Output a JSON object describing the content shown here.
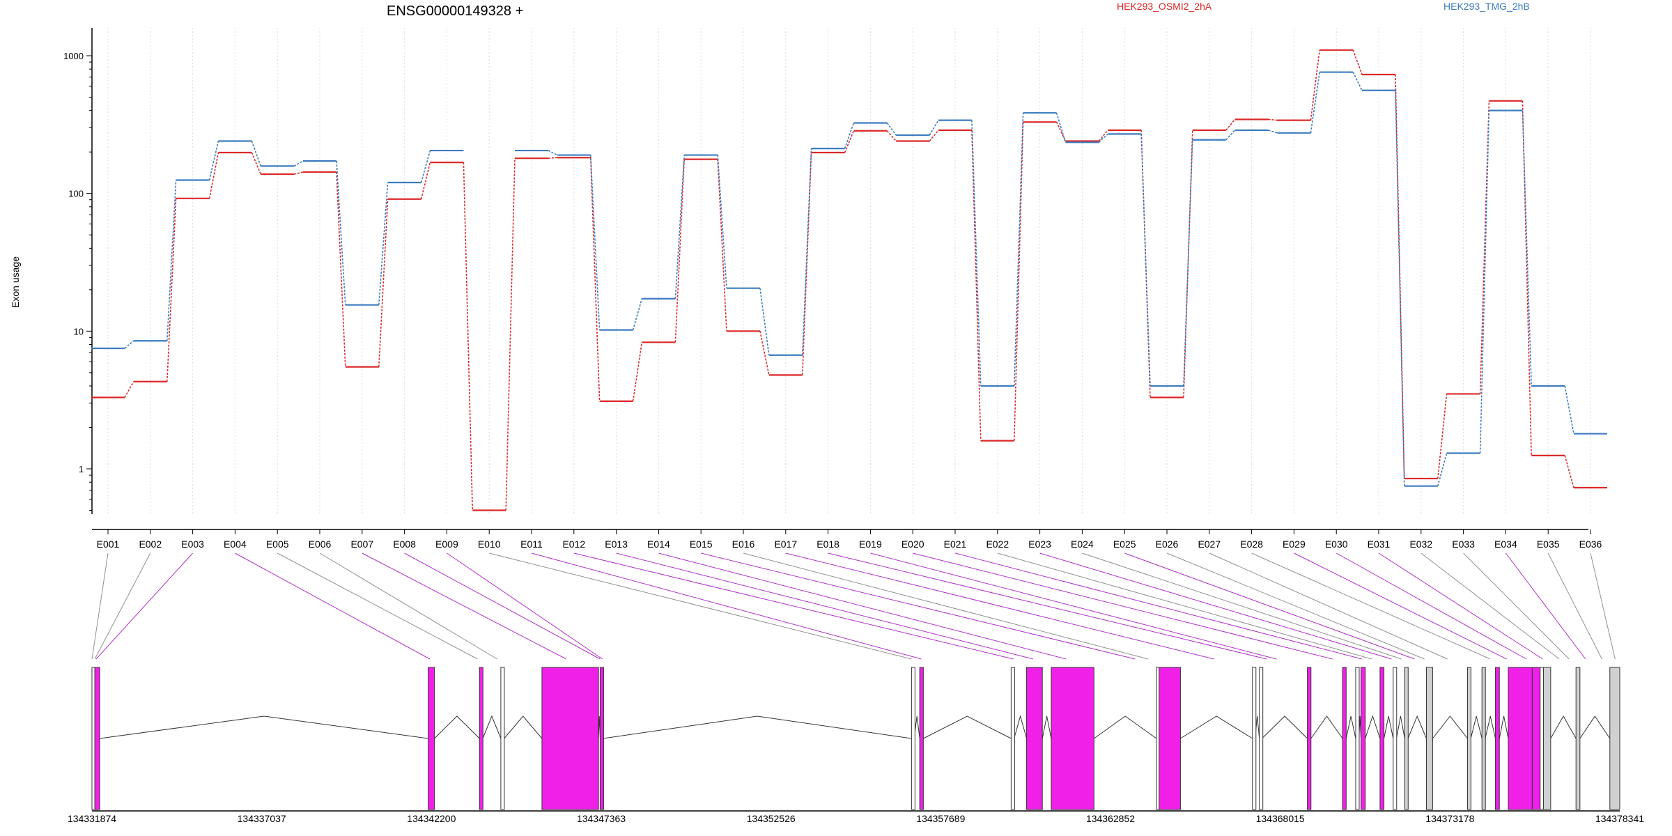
{
  "chart_data": {
    "type": "line",
    "title": "ENSG00000149328 +",
    "ylabel": "Exon usage",
    "xlabel": "",
    "y_scale": "log",
    "ylim": [
      0.4,
      1600
    ],
    "y_ticks": [
      1,
      10,
      100,
      1000
    ],
    "legend_placement": "top-right",
    "grid": "vertical dotted lines at each exon",
    "categories": [
      "E001",
      "E002",
      "E003",
      "E004",
      "E005",
      "E006",
      "E007",
      "E008",
      "E009",
      "E010",
      "E011",
      "E012",
      "E013",
      "E014",
      "E015",
      "E016",
      "E017",
      "E018",
      "E019",
      "E020",
      "E021",
      "E022",
      "E023",
      "E024",
      "E025",
      "E026",
      "E027",
      "E028",
      "E029",
      "E030",
      "E031",
      "E032",
      "E033",
      "E034",
      "E035",
      "E036"
    ],
    "series": [
      {
        "name": "HEK293_OSMI2_2hA",
        "color": "#dc2828",
        "values": [
          3.3,
          4.3,
          92,
          198,
          138,
          143,
          5.5,
          91,
          168,
          0.5,
          180,
          182,
          3.1,
          8.3,
          177,
          10,
          4.8,
          198,
          285,
          240,
          288,
          1.6,
          330,
          240,
          288,
          3.3,
          288,
          345,
          340,
          1100,
          730,
          0.85,
          3.5,
          470,
          1.25,
          0.73
        ]
      },
      {
        "name": "HEK293_TMG_2hB",
        "color": "#3c7cc0",
        "values": [
          7.5,
          8.5,
          125,
          240,
          158,
          172,
          15.5,
          120,
          205,
          null,
          205,
          190,
          10.2,
          17.2,
          190,
          20.5,
          6.7,
          212,
          325,
          265,
          340,
          4.0,
          385,
          235,
          270,
          4.0,
          245,
          288,
          275,
          760,
          560,
          0.75,
          1.3,
          400,
          4.0,
          1.8
        ]
      }
    ],
    "exon_purple": [
      false,
      false,
      true,
      true,
      false,
      false,
      true,
      true,
      true,
      false,
      true,
      true,
      true,
      true,
      true,
      false,
      true,
      true,
      true,
      true,
      true,
      false,
      true,
      false,
      true,
      false,
      false,
      false,
      true,
      true,
      true,
      false,
      false,
      true,
      false,
      false
    ],
    "exon_bases": [
      134331874,
      134331960,
      134332000,
      134342150,
      134343600,
      134344200,
      134346300,
      134347330,
      134347400,
      134356800,
      134357100,
      134359900,
      134360500,
      134361500,
      134363600,
      134364000,
      134366000,
      134367600,
      134367900,
      134369600,
      134370500,
      134370800,
      134371400,
      134371700,
      134372100,
      134372400,
      134373100,
      134374400,
      134374900,
      134375500,
      134376000,
      134376500,
      134376800,
      134377300,
      134377800,
      134378200
    ],
    "gene_track": {
      "start": 134331874,
      "end": 134378341,
      "ticks": [
        134331874,
        134337037,
        134342200,
        134347363,
        134352526,
        134357689,
        134362852,
        134368015,
        134373178,
        134378341
      ],
      "exon_fill": "#f020e8",
      "nonpurple_fill": "#d0d0d0",
      "blocks": [
        {
          "s": 134331874,
          "e": 134331960,
          "c": "w"
        },
        {
          "s": 134331960,
          "e": 134332110,
          "c": "p"
        },
        {
          "s": 134342100,
          "e": 134342290,
          "c": "p"
        },
        {
          "s": 134343660,
          "e": 134343760,
          "c": "p"
        },
        {
          "s": 134344310,
          "e": 134344410,
          "c": "w"
        },
        {
          "s": 134345560,
          "e": 134347280,
          "c": "p"
        },
        {
          "s": 134347330,
          "e": 134347420,
          "c": "p"
        },
        {
          "s": 134356800,
          "e": 134356880,
          "c": "w"
        },
        {
          "s": 134357050,
          "e": 134357160,
          "c": "p"
        },
        {
          "s": 134359830,
          "e": 134359920,
          "c": "w"
        },
        {
          "s": 134360300,
          "e": 134360780,
          "c": "p"
        },
        {
          "s": 134361050,
          "e": 134362350,
          "c": "p"
        },
        {
          "s": 134364250,
          "e": 134364330,
          "c": "w"
        },
        {
          "s": 134364330,
          "e": 134364980,
          "c": "p"
        },
        {
          "s": 134367170,
          "e": 134367250,
          "c": "w"
        },
        {
          "s": 134367380,
          "e": 134367460,
          "c": "w"
        },
        {
          "s": 134368840,
          "e": 134368950,
          "c": "p"
        },
        {
          "s": 134369910,
          "e": 134370020,
          "c": "p"
        },
        {
          "s": 134370310,
          "e": 134370410,
          "c": "w"
        },
        {
          "s": 134370470,
          "e": 134370600,
          "c": "p"
        },
        {
          "s": 134371050,
          "e": 134371170,
          "c": "p"
        },
        {
          "s": 134371450,
          "e": 134371550,
          "c": "w"
        },
        {
          "s": 134371800,
          "e": 134371900,
          "c": "g"
        },
        {
          "s": 134372460,
          "e": 134372650,
          "c": "g"
        },
        {
          "s": 134373710,
          "e": 134373810,
          "c": "g"
        },
        {
          "s": 134374150,
          "e": 134374250,
          "c": "g"
        },
        {
          "s": 134374560,
          "e": 134374680,
          "c": "p"
        },
        {
          "s": 134374950,
          "e": 134375680,
          "c": "p"
        },
        {
          "s": 134375680,
          "e": 134375920,
          "c": "p"
        },
        {
          "s": 134375920,
          "e": 134376020,
          "c": "w"
        },
        {
          "s": 134376020,
          "e": 134376240,
          "c": "g"
        },
        {
          "s": 134377010,
          "e": 134377130,
          "c": "g"
        },
        {
          "s": 134378040,
          "e": 134378341,
          "c": "g"
        }
      ]
    }
  }
}
